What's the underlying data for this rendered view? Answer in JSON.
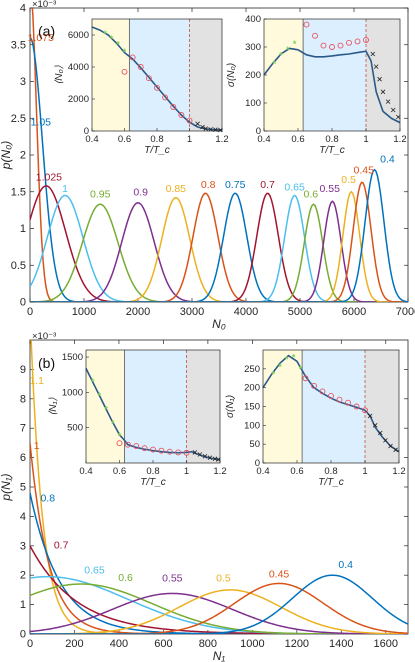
{
  "chart_data": [
    {
      "panel": "(a)",
      "type": "line",
      "xlabel": "N₀",
      "ylabel": "p(N₀)",
      "scale_label": "×10⁻³",
      "xlim": [
        0,
        7000
      ],
      "ylim": [
        0,
        4.0
      ],
      "xticks": [
        0,
        1000,
        2000,
        3000,
        4000,
        5000,
        6000,
        7000
      ],
      "yticks": [
        0,
        0.5,
        1,
        1.5,
        2,
        2.5,
        3,
        3.5,
        4
      ],
      "series": [
        {
          "name": "1.075",
          "color": "#d95319",
          "mu": 0,
          "sigma": 120,
          "peak": 4.3,
          "lx": 200,
          "ly": 3.55
        },
        {
          "name": "1.05",
          "color": "#0072bd",
          "mu": 0,
          "sigma": 230,
          "peak": 3.6,
          "lx": 200,
          "ly": 2.4
        },
        {
          "name": "1.025",
          "color": "#a2142f",
          "mu": 300,
          "sigma": 360,
          "peak": 1.58,
          "lx": 350,
          "ly": 1.65
        },
        {
          "name": "1",
          "color": "#4dbeee",
          "mu": 650,
          "sigma": 330,
          "peak": 1.45,
          "lx": 650,
          "ly": 1.5
        },
        {
          "name": "0.95",
          "color": "#77ac30",
          "mu": 1300,
          "sigma": 330,
          "peak": 1.33,
          "lx": 1300,
          "ly": 1.42
        },
        {
          "name": "0.9",
          "color": "#7e2f8e",
          "mu": 2000,
          "sigma": 300,
          "peak": 1.35,
          "lx": 2050,
          "ly": 1.45
        },
        {
          "name": "0.85",
          "color": "#edb120",
          "mu": 2700,
          "sigma": 260,
          "peak": 1.42,
          "lx": 2700,
          "ly": 1.5
        },
        {
          "name": "0.8",
          "color": "#d95319",
          "mu": 3250,
          "sigma": 230,
          "peak": 1.48,
          "lx": 3300,
          "ly": 1.55
        },
        {
          "name": "0.75",
          "color": "#0072bd",
          "mu": 3800,
          "sigma": 215,
          "peak": 1.48,
          "lx": 3800,
          "ly": 1.55
        },
        {
          "name": "0.7",
          "color": "#a2142f",
          "mu": 4400,
          "sigma": 200,
          "peak": 1.48,
          "lx": 4400,
          "ly": 1.55
        },
        {
          "name": "0.65",
          "color": "#4dbeee",
          "mu": 4900,
          "sigma": 185,
          "peak": 1.45,
          "lx": 4900,
          "ly": 1.52
        },
        {
          "name": "0.6",
          "color": "#77ac30",
          "mu": 5250,
          "sigma": 170,
          "peak": 1.33,
          "lx": 5200,
          "ly": 1.42
        },
        {
          "name": "0.55",
          "color": "#7e2f8e",
          "mu": 5600,
          "sigma": 160,
          "peak": 1.37,
          "lx": 5550,
          "ly": 1.5
        },
        {
          "name": "0.5",
          "color": "#edb120",
          "mu": 5950,
          "sigma": 155,
          "peak": 1.5,
          "lx": 5900,
          "ly": 1.62
        },
        {
          "name": "0.45",
          "color": "#d95319",
          "mu": 6150,
          "sigma": 165,
          "peak": 1.63,
          "lx": 6180,
          "ly": 1.75
        },
        {
          "name": "0.4",
          "color": "#0072bd",
          "mu": 6380,
          "sigma": 175,
          "peak": 1.8,
          "lx": 6620,
          "ly": 1.9
        }
      ],
      "insets": [
        {
          "ylabel": "⟨N₀⟩",
          "xlabel": "T/T_c",
          "xlim": [
            0.4,
            1.2
          ],
          "ylim": [
            0,
            7000
          ],
          "xticks": [
            0.4,
            0.6,
            0.8,
            1,
            1.2
          ],
          "yticks": [
            0,
            2000,
            4000,
            6000
          ],
          "curve": [
            [
              0.4,
              6500
            ],
            [
              0.45,
              6300
            ],
            [
              0.5,
              6000
            ],
            [
              0.55,
              5500
            ],
            [
              0.6,
              4900
            ],
            [
              0.65,
              4500
            ],
            [
              0.7,
              3950
            ],
            [
              0.75,
              3350
            ],
            [
              0.8,
              2750
            ],
            [
              0.85,
              2150
            ],
            [
              0.9,
              1550
            ],
            [
              0.95,
              1000
            ],
            [
              1.0,
              550
            ],
            [
              1.05,
              250
            ],
            [
              1.1,
              130
            ],
            [
              1.15,
              80
            ],
            [
              1.2,
              60
            ]
          ],
          "green_points": [
            [
              0.48,
              6050
            ],
            [
              0.52,
              5750
            ],
            [
              0.56,
              5400
            ],
            [
              0.6,
              4950
            ]
          ],
          "red_circles": [
            [
              0.6,
              3700
            ],
            [
              0.65,
              4600
            ],
            [
              0.7,
              4000
            ],
            [
              0.75,
              3300
            ],
            [
              0.8,
              2700
            ],
            [
              0.85,
              2100
            ],
            [
              0.9,
              1500
            ],
            [
              0.95,
              1000
            ],
            [
              1.0,
              650
            ]
          ],
          "black_crosses": [
            [
              1.05,
              450
            ],
            [
              1.08,
              250
            ],
            [
              1.1,
              150
            ],
            [
              1.13,
              100
            ],
            [
              1.16,
              80
            ],
            [
              1.19,
              60
            ]
          ]
        },
        {
          "ylabel": "σ(N₀)",
          "xlabel": "T/T_c",
          "xlim": [
            0.4,
            1.2
          ],
          "ylim": [
            0,
            400
          ],
          "xticks": [
            0.4,
            0.6,
            0.8,
            1,
            1.2
          ],
          "yticks": [
            0,
            100,
            200,
            300,
            400
          ],
          "curve": [
            [
              0.4,
              200
            ],
            [
              0.45,
              240
            ],
            [
              0.5,
              275
            ],
            [
              0.55,
              295
            ],
            [
              0.6,
              290
            ],
            [
              0.65,
              272
            ],
            [
              0.7,
              265
            ],
            [
              0.75,
              265
            ],
            [
              0.8,
              268
            ],
            [
              0.85,
              272
            ],
            [
              0.9,
              275
            ],
            [
              0.95,
              280
            ],
            [
              1.0,
              285
            ],
            [
              1.03,
              250
            ],
            [
              1.06,
              140
            ],
            [
              1.1,
              70
            ],
            [
              1.15,
              45
            ],
            [
              1.2,
              30
            ]
          ],
          "green_points": [
            [
              0.46,
              240
            ],
            [
              0.5,
              270
            ],
            [
              0.54,
              290
            ],
            [
              0.58,
              310
            ]
          ],
          "red_circles": [
            [
              0.65,
              380
            ],
            [
              0.7,
              340
            ],
            [
              0.75,
              305
            ],
            [
              0.8,
              300
            ],
            [
              0.85,
              305
            ],
            [
              0.9,
              315
            ],
            [
              0.95,
              320
            ],
            [
              1.0,
              325
            ]
          ],
          "black_crosses": [
            [
              1.04,
              275
            ],
            [
              1.06,
              230
            ],
            [
              1.08,
              185
            ],
            [
              1.1,
              140
            ],
            [
              1.13,
              105
            ],
            [
              1.16,
              75
            ],
            [
              1.19,
              50
            ]
          ]
        }
      ]
    },
    {
      "panel": "(b)",
      "type": "line",
      "xlabel": "N₁",
      "ylabel": "p(N₁)",
      "scale_label": "×10⁻³",
      "xlim": [
        0,
        1700
      ],
      "ylim": [
        0,
        10
      ],
      "xticks": [
        0,
        200,
        400,
        600,
        800,
        1000,
        1200,
        1400,
        1600
      ],
      "yticks": [
        0,
        1,
        2,
        3,
        4,
        5,
        6,
        7,
        8,
        9
      ],
      "series": [
        {
          "name": "1.1",
          "color": "#edb120",
          "kind": "exp",
          "a": 11,
          "tau": 55,
          "lx": 30,
          "ly": 8.5
        },
        {
          "name": "1",
          "color": "#d95319",
          "kind": "exp",
          "a": 6.5,
          "tau": 85,
          "lx": 30,
          "ly": 6.3
        },
        {
          "name": "0.8",
          "color": "#0072bd",
          "kind": "exp",
          "a": 4.8,
          "tau": 135,
          "lx": 80,
          "ly": 4.5
        },
        {
          "name": "0.7",
          "color": "#a2142f",
          "kind": "exp",
          "a": 3.0,
          "tau": 210,
          "lx": 140,
          "ly": 2.9
        },
        {
          "name": "0.65",
          "color": "#4dbeee",
          "mu": 80,
          "sigma": 360,
          "peak": 1.95,
          "lx": 290,
          "ly": 2.05
        },
        {
          "name": "0.6",
          "color": "#77ac30",
          "mu": 230,
          "sigma": 320,
          "peak": 1.7,
          "lx": 430,
          "ly": 1.8
        },
        {
          "name": "0.55",
          "color": "#7e2f8e",
          "mu": 640,
          "sigma": 270,
          "peak": 1.38,
          "lx": 640,
          "ly": 1.78
        },
        {
          "name": "0.5",
          "color": "#edb120",
          "mu": 900,
          "sigma": 230,
          "peak": 1.5,
          "lx": 870,
          "ly": 1.78
        },
        {
          "name": "0.45",
          "color": "#d95319",
          "mu": 1120,
          "sigma": 200,
          "peak": 1.72,
          "lx": 1120,
          "ly": 1.93
        },
        {
          "name": "0.4",
          "color": "#0072bd",
          "mu": 1360,
          "sigma": 180,
          "peak": 2.0,
          "lx": 1420,
          "ly": 2.25
        }
      ],
      "insets": [
        {
          "ylabel": "⟨N₁⟩",
          "xlabel": "T/T_c",
          "xlim": [
            0.4,
            1.2
          ],
          "ylim": [
            0,
            1600
          ],
          "xticks": [
            0.4,
            0.6,
            0.8,
            1,
            1.2
          ],
          "yticks": [
            500,
            1000,
            1500
          ],
          "curve": [
            [
              0.4,
              1340
            ],
            [
              0.45,
              1100
            ],
            [
              0.5,
              860
            ],
            [
              0.55,
              620
            ],
            [
              0.6,
              400
            ],
            [
              0.63,
              320
            ],
            [
              0.65,
              260
            ],
            [
              0.7,
              220
            ],
            [
              0.75,
              195
            ],
            [
              0.8,
              175
            ],
            [
              0.85,
              160
            ],
            [
              0.9,
              150
            ],
            [
              0.95,
              145
            ],
            [
              1.0,
              150
            ],
            [
              1.03,
              160
            ],
            [
              1.05,
              140
            ],
            [
              1.1,
              95
            ],
            [
              1.15,
              65
            ],
            [
              1.2,
              45
            ]
          ],
          "green_points": [
            [
              0.44,
              1150
            ],
            [
              0.48,
              950
            ],
            [
              0.52,
              760
            ],
            [
              0.56,
              560
            ],
            [
              0.6,
              380
            ]
          ],
          "red_circles": [
            [
              0.6,
              280
            ],
            [
              0.65,
              260
            ],
            [
              0.7,
              240
            ],
            [
              0.75,
              210
            ],
            [
              0.8,
              190
            ],
            [
              0.85,
              175
            ],
            [
              0.9,
              160
            ],
            [
              0.95,
              150
            ],
            [
              1.0,
              145
            ]
          ],
          "black_crosses": [
            [
              1.05,
              150
            ],
            [
              1.08,
              120
            ],
            [
              1.11,
              95
            ],
            [
              1.14,
              75
            ],
            [
              1.17,
              60
            ],
            [
              1.19,
              50
            ]
          ]
        },
        {
          "ylabel": "σ(N₁)",
          "xlabel": "T/T_c",
          "xlim": [
            0.4,
            1.2
          ],
          "ylim": [
            0,
            300
          ],
          "xticks": [
            0.4,
            0.6,
            0.8,
            1,
            1.2
          ],
          "yticks": [
            0,
            50,
            100,
            150,
            200,
            250
          ],
          "curve": [
            [
              0.4,
              200
            ],
            [
              0.45,
              235
            ],
            [
              0.5,
              265
            ],
            [
              0.55,
              285
            ],
            [
              0.6,
              270
            ],
            [
              0.65,
              230
            ],
            [
              0.7,
              200
            ],
            [
              0.75,
              185
            ],
            [
              0.8,
              172
            ],
            [
              0.85,
              162
            ],
            [
              0.9,
              155
            ],
            [
              0.95,
              148
            ],
            [
              1.0,
              140
            ],
            [
              1.03,
              125
            ],
            [
              1.06,
              95
            ],
            [
              1.1,
              70
            ],
            [
              1.15,
              45
            ],
            [
              1.2,
              30
            ]
          ],
          "green_points": [
            [
              0.46,
              235
            ],
            [
              0.5,
              255
            ],
            [
              0.54,
              275
            ],
            [
              0.58,
              280
            ],
            [
              0.62,
              250
            ]
          ],
          "red_circles": [
            [
              0.65,
              225
            ],
            [
              0.7,
              205
            ],
            [
              0.75,
              190
            ],
            [
              0.8,
              178
            ],
            [
              0.85,
              168
            ],
            [
              0.9,
              160
            ],
            [
              0.95,
              150
            ],
            [
              1.0,
              140
            ]
          ],
          "black_crosses": [
            [
              1.03,
              125
            ],
            [
              1.06,
              100
            ],
            [
              1.09,
              80
            ],
            [
              1.12,
              60
            ],
            [
              1.15,
              45
            ],
            [
              1.18,
              35
            ]
          ]
        }
      ]
    }
  ],
  "colors": {
    "yellow_region": "#fffadc",
    "blue_region": "#dcefff",
    "gray_region": "#e2e2e2",
    "inset_curve": "#2a5a8a",
    "green_points": "#7ccf5c",
    "red_circles": "#e8525a",
    "black_crosses": "#222222",
    "divider": "#c0504d"
  }
}
